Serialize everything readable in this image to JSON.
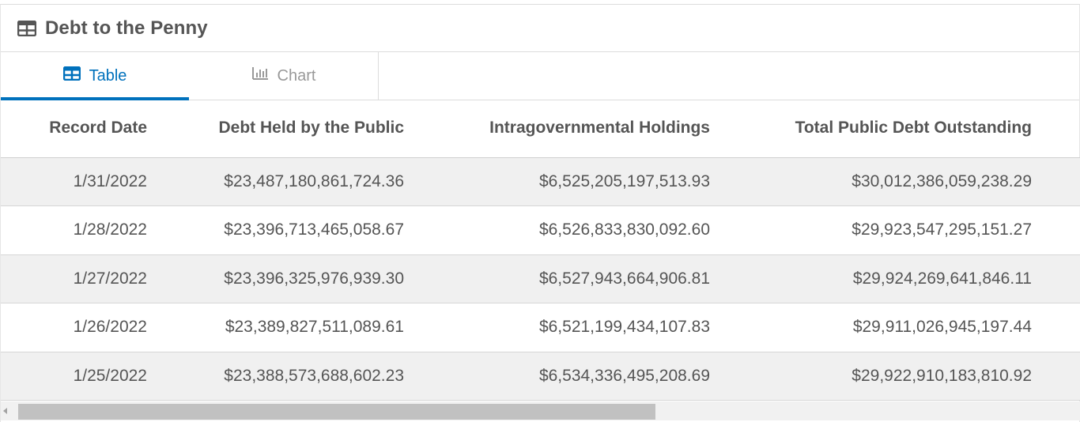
{
  "header": {
    "icon": "table-icon",
    "title": "Debt to the Penny"
  },
  "tabs": [
    {
      "label": "Table",
      "icon": "table-icon",
      "active": true
    },
    {
      "label": "Chart",
      "icon": "bar-chart-icon",
      "active": false
    }
  ],
  "table": {
    "columns": [
      "Record Date",
      "Debt Held by the Public",
      "Intragovernmental Holdings",
      "Total Public Debt Outstanding"
    ],
    "rows": [
      [
        "1/31/2022",
        "$23,487,180,861,724.36",
        "$6,525,205,197,513.93",
        "$30,012,386,059,238.29"
      ],
      [
        "1/28/2022",
        "$23,396,713,465,058.67",
        "$6,526,833,830,092.60",
        "$29,923,547,295,151.27"
      ],
      [
        "1/27/2022",
        "$23,396,325,976,939.30",
        "$6,527,943,664,906.81",
        "$29,924,269,641,846.11"
      ],
      [
        "1/26/2022",
        "$23,389,827,511,089.61",
        "$6,521,199,434,107.83",
        "$29,911,026,945,197.44"
      ],
      [
        "1/25/2022",
        "$23,388,573,688,602.23",
        "$6,534,336,495,208.69",
        "$29,922,910,183,810.92"
      ]
    ]
  },
  "colors": {
    "accent": "#0071bc",
    "row_alt": "#f0f0f0",
    "text": "#555555"
  },
  "scrollbar": {
    "position": 0
  }
}
